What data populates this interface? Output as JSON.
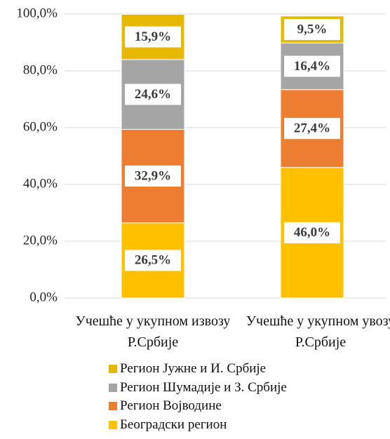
{
  "chart_data": {
    "type": "stacked_bar",
    "categories": [
      "Учешће у укупном извозу Р.Србије",
      "Учешће у укупном увозу Р.Србије"
    ],
    "series": [
      {
        "name": "Београдски регион",
        "color": "#ffc000",
        "values": [
          26.5,
          46.0
        ],
        "value_labels": [
          "26,5%",
          "46,0%"
        ]
      },
      {
        "name": "Регион Војводине",
        "color": "#ed7d31",
        "values": [
          32.9,
          27.4
        ],
        "value_labels": [
          "32,9%",
          "27,4%"
        ]
      },
      {
        "name": "Регион Шумадије и З. Србије",
        "color": "#a5a5a5",
        "values": [
          24.6,
          16.4
        ],
        "value_labels": [
          "24,6%",
          "16,4%"
        ]
      },
      {
        "name": "Регион Јужне и И. Србије",
        "color": "#e6b800",
        "values": [
          15.9,
          9.5
        ],
        "value_labels": [
          "15,9%",
          "9,5%"
        ]
      }
    ],
    "ylim": [
      0,
      100
    ],
    "yticks": [
      {
        "value": 0,
        "label": "0,0%"
      },
      {
        "value": 20,
        "label": "20,0%"
      },
      {
        "value": 40,
        "label": "40,0%"
      },
      {
        "value": 60,
        "label": "60,0%"
      },
      {
        "value": 80,
        "label": "80,0%"
      },
      {
        "value": 100,
        "label": "100,0%"
      }
    ],
    "grid": true
  }
}
